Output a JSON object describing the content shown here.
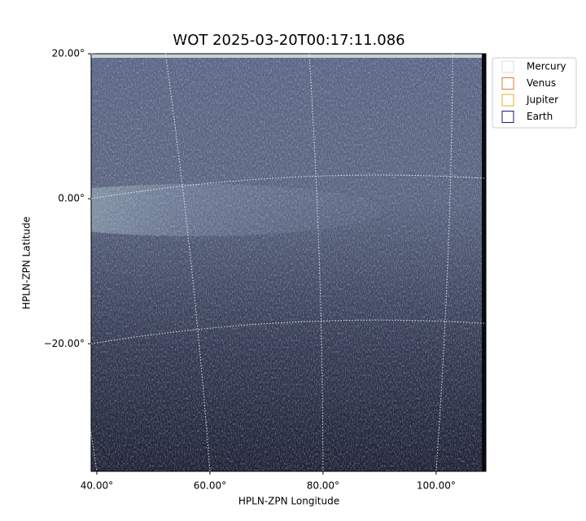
{
  "chart_data": {
    "type": "image",
    "title": "WOT 2025-03-20T00:17:11.086",
    "xlabel": "HPLN-ZPN Longitude",
    "ylabel": "HPLN-ZPN Latitude",
    "xlim": [
      39.0,
      108.8
    ],
    "ylim": [
      -37.6,
      20.0
    ],
    "xticks": [
      {
        "value": 40,
        "label": "40.00°"
      },
      {
        "value": 60,
        "label": "60.00°"
      },
      {
        "value": 80,
        "label": "80.00°"
      },
      {
        "value": 100,
        "label": "100.00°"
      }
    ],
    "yticks": [
      {
        "value": 20,
        "label": "20.00°"
      },
      {
        "value": 0,
        "label": "0.00°"
      },
      {
        "value": -20,
        "label": "−20.00°"
      }
    ],
    "grid": true,
    "legend_position": "upper-right-outside",
    "series": [
      {
        "name": "Mercury",
        "color": "#dddddd"
      },
      {
        "name": "Venus",
        "color": "#e07b39"
      },
      {
        "name": "Jupiter",
        "color": "#e6b422"
      },
      {
        "name": "Earth",
        "color": "#1a1a7a"
      }
    ]
  }
}
